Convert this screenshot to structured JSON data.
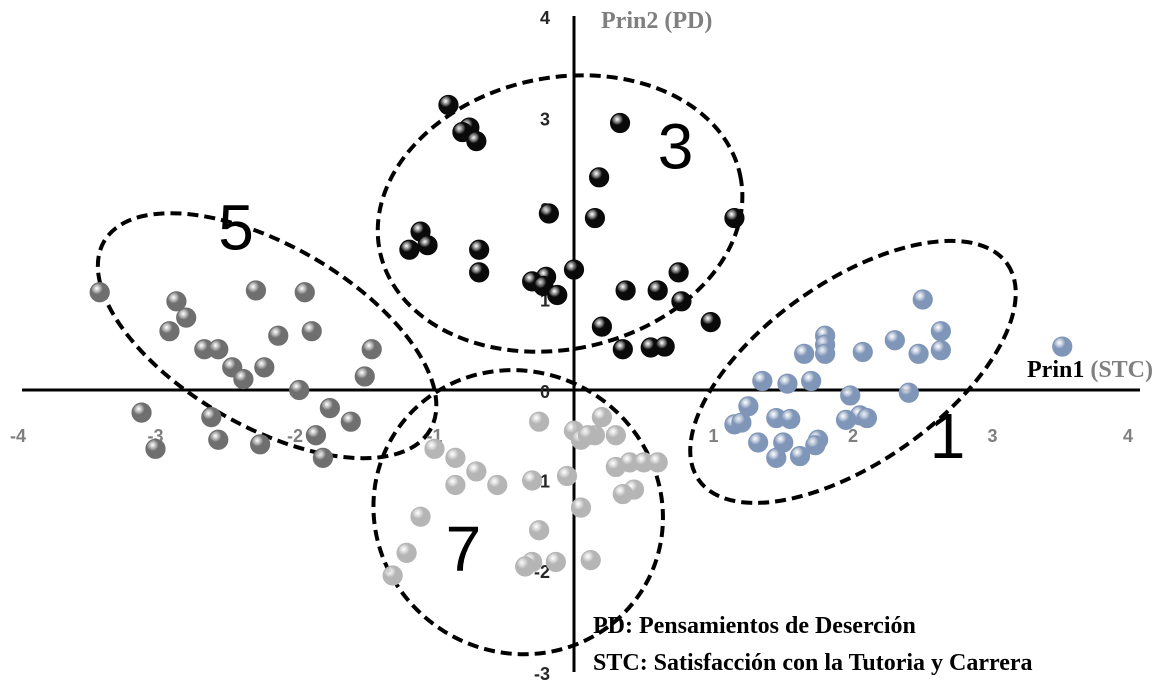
{
  "chart_data": {
    "type": "scatter",
    "title": "",
    "xlabel": {
      "prefix": "Prin1",
      "suffix": "(STC)"
    },
    "ylabel": {
      "prefix": "Prin2",
      "suffix": "(PD)"
    },
    "xlim": [
      -4,
      4
    ],
    "ylim": [
      -3,
      4
    ],
    "x_ticks": [
      "-4",
      "-3",
      "-2",
      "-1",
      "0",
      "1",
      "2",
      "3",
      "4"
    ],
    "y_ticks": [
      "-3",
      "-2",
      "-1",
      "0",
      "1",
      "2",
      "3",
      "4"
    ],
    "grid": false,
    "legend_lines": [
      "PD: Pensamientos de Deserción",
      "STC: Satisfacción con la Tutoria y Carrera"
    ],
    "colors": {
      "axis_x_label": "#000000",
      "axis_paren": "#7f7f7f",
      "axis_y_label": "#7f7f7f",
      "ellipse": "#000000"
    },
    "series": [
      {
        "name": "1",
        "color": "#8096b8",
        "ellipse": {
          "cx": 2.0,
          "cy": 0.2,
          "rx": 1.35,
          "ry": 1.0,
          "angle_deg": -35
        },
        "label_pos": [
          2.55,
          -0.75
        ],
        "points": [
          [
            2.5,
            1.0
          ],
          [
            3.5,
            0.48
          ],
          [
            1.8,
            0.6
          ],
          [
            1.8,
            0.5
          ],
          [
            1.8,
            0.4
          ],
          [
            1.65,
            0.4
          ],
          [
            2.07,
            0.42
          ],
          [
            2.3,
            0.55
          ],
          [
            2.47,
            0.4
          ],
          [
            2.63,
            0.44
          ],
          [
            2.63,
            0.65
          ],
          [
            1.35,
            0.1
          ],
          [
            1.53,
            0.07
          ],
          [
            1.7,
            0.1
          ],
          [
            1.98,
            -0.06
          ],
          [
            2.4,
            -0.03
          ],
          [
            1.25,
            -0.18
          ],
          [
            1.45,
            -0.31
          ],
          [
            1.55,
            -0.32
          ],
          [
            2.05,
            -0.28
          ],
          [
            2.1,
            -0.31
          ],
          [
            1.95,
            -0.33
          ],
          [
            1.15,
            -0.38
          ],
          [
            1.2,
            -0.36
          ],
          [
            1.32,
            -0.58
          ],
          [
            1.5,
            -0.58
          ],
          [
            1.75,
            -0.55
          ],
          [
            1.73,
            -0.61
          ],
          [
            1.62,
            -0.73
          ],
          [
            1.45,
            -0.75
          ]
        ]
      },
      {
        "name": "3",
        "color": "#0a0a0a",
        "ellipse": {
          "cx": -0.1,
          "cy": 1.95,
          "rx": 1.32,
          "ry": 1.5,
          "angle_deg": -12
        },
        "label_pos": [
          0.6,
          2.45
        ],
        "points": [
          [
            -0.9,
            3.15
          ],
          [
            -0.75,
            2.9
          ],
          [
            -0.8,
            2.85
          ],
          [
            -0.7,
            2.75
          ],
          [
            0.33,
            2.95
          ],
          [
            0.18,
            2.35
          ],
          [
            -0.18,
            1.95
          ],
          [
            0.15,
            1.9
          ],
          [
            1.15,
            1.9
          ],
          [
            -1.1,
            1.75
          ],
          [
            -1.05,
            1.6
          ],
          [
            -1.18,
            1.55
          ],
          [
            -0.68,
            1.55
          ],
          [
            -0.68,
            1.3
          ],
          [
            0.0,
            1.33
          ],
          [
            0.75,
            1.3
          ],
          [
            -0.2,
            1.25
          ],
          [
            -0.3,
            1.2
          ],
          [
            -0.22,
            1.15
          ],
          [
            -0.12,
            1.05
          ],
          [
            0.37,
            1.1
          ],
          [
            0.6,
            1.1
          ],
          [
            0.77,
            0.98
          ],
          [
            0.98,
            0.75
          ],
          [
            0.2,
            0.7
          ],
          [
            0.35,
            0.45
          ],
          [
            0.55,
            0.47
          ],
          [
            0.65,
            0.48
          ]
        ]
      },
      {
        "name": "5",
        "color": "#6f6f6f",
        "ellipse": {
          "cx": -2.2,
          "cy": 0.6,
          "rx": 1.35,
          "ry": 1.0,
          "angle_deg": 30
        },
        "label_pos": [
          -2.55,
          1.55
        ],
        "points": [
          [
            -3.4,
            1.08
          ],
          [
            -2.85,
            0.98
          ],
          [
            -2.28,
            1.1
          ],
          [
            -1.93,
            1.08
          ],
          [
            -2.78,
            0.8
          ],
          [
            -2.9,
            0.65
          ],
          [
            -2.12,
            0.6
          ],
          [
            -1.88,
            0.65
          ],
          [
            -2.65,
            0.45
          ],
          [
            -2.55,
            0.45
          ],
          [
            -1.45,
            0.45
          ],
          [
            -2.45,
            0.25
          ],
          [
            -2.22,
            0.25
          ],
          [
            -2.37,
            0.12
          ],
          [
            -1.97,
            0.0
          ],
          [
            -1.5,
            0.15
          ],
          [
            -3.1,
            -0.25
          ],
          [
            -2.6,
            -0.3
          ],
          [
            -1.75,
            -0.2
          ],
          [
            -1.6,
            -0.35
          ],
          [
            -1.85,
            -0.5
          ],
          [
            -2.55,
            -0.55
          ],
          [
            -2.25,
            -0.6
          ],
          [
            -3.0,
            -0.65
          ],
          [
            -1.8,
            -0.75
          ]
        ]
      },
      {
        "name": "7",
        "color": "#b5b5b5",
        "ellipse": {
          "cx": -0.4,
          "cy": -1.35,
          "rx": 1.05,
          "ry": 1.55,
          "angle_deg": 32
        },
        "label_pos": [
          -0.92,
          -2.0
        ],
        "points": [
          [
            0.2,
            -0.3
          ],
          [
            -0.25,
            -0.35
          ],
          [
            0.0,
            -0.45
          ],
          [
            0.05,
            -0.55
          ],
          [
            0.15,
            -0.5
          ],
          [
            0.1,
            -0.5
          ],
          [
            0.3,
            -0.5
          ],
          [
            -1.0,
            -0.65
          ],
          [
            -0.85,
            -0.75
          ],
          [
            -0.7,
            -0.9
          ],
          [
            0.3,
            -0.85
          ],
          [
            0.4,
            -0.8
          ],
          [
            0.5,
            -0.8
          ],
          [
            0.6,
            -0.8
          ],
          [
            -0.05,
            -0.95
          ],
          [
            -0.85,
            -1.05
          ],
          [
            -0.55,
            -1.05
          ],
          [
            -0.3,
            -1.0
          ],
          [
            0.43,
            -1.1
          ],
          [
            0.35,
            -1.15
          ],
          [
            0.05,
            -1.3
          ],
          [
            -1.1,
            -1.4
          ],
          [
            -0.25,
            -1.55
          ],
          [
            -1.2,
            -1.8
          ],
          [
            -0.3,
            -1.9
          ],
          [
            -0.35,
            -1.95
          ],
          [
            -0.13,
            -1.9
          ],
          [
            0.12,
            -1.88
          ],
          [
            -1.3,
            -2.05
          ]
        ]
      }
    ]
  }
}
